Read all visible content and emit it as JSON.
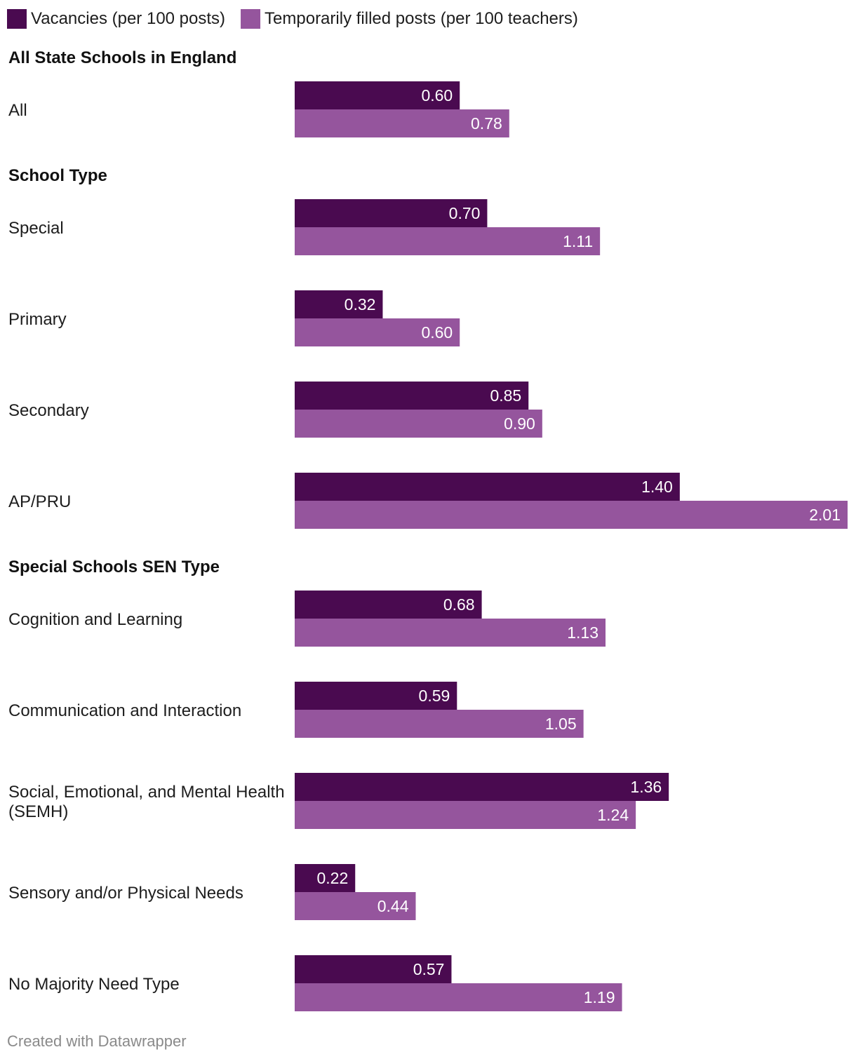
{
  "colors": {
    "vacancies": "#4a0a50",
    "temporary": "#95559d"
  },
  "footer": {
    "credit": "Created with Datawrapper"
  },
  "chart_data": {
    "type": "bar",
    "orientation": "horizontal",
    "legend_position": "top-left",
    "xlim": [
      0,
      2.01
    ],
    "series": [
      {
        "name": "Vacancies (per 100 posts)",
        "values": [
          0.6,
          0.7,
          0.32,
          0.85,
          1.4,
          0.68,
          0.59,
          1.36,
          0.22,
          0.57
        ],
        "labels": [
          "0.60",
          "0.70",
          "0.32",
          "0.85",
          "1.40",
          "0.68",
          "0.59",
          "1.36",
          "0.22",
          "0.57"
        ]
      },
      {
        "name": "Temporarily filled posts (per 100 teachers)",
        "values": [
          0.78,
          1.11,
          0.6,
          0.9,
          2.01,
          1.13,
          1.05,
          1.24,
          0.44,
          1.19
        ],
        "labels": [
          "0.78",
          "1.11",
          "0.60",
          "0.90",
          "2.01",
          "1.13",
          "1.05",
          "1.24",
          "0.44",
          "1.19"
        ]
      }
    ],
    "groups": [
      {
        "title": "All State Schools in England",
        "categories": [
          {
            "lines": [
              "All"
            ],
            "index": 0
          }
        ]
      },
      {
        "title": "School Type",
        "categories": [
          {
            "lines": [
              "Special"
            ],
            "index": 1
          },
          {
            "lines": [
              "Primary"
            ],
            "index": 2
          },
          {
            "lines": [
              "Secondary"
            ],
            "index": 3
          },
          {
            "lines": [
              "AP/PRU"
            ],
            "index": 4
          }
        ]
      },
      {
        "title": "Special Schools SEN Type",
        "categories": [
          {
            "lines": [
              "Cognition and Learning"
            ],
            "index": 5
          },
          {
            "lines": [
              "Communication and Interaction"
            ],
            "index": 6
          },
          {
            "lines": [
              "Social, Emotional, and Mental Health",
              "(SEMH)"
            ],
            "index": 7
          },
          {
            "lines": [
              "Sensory and/or Physical Needs"
            ],
            "index": 8
          },
          {
            "lines": [
              "No Majority Need Type"
            ],
            "index": 9
          }
        ]
      }
    ]
  }
}
